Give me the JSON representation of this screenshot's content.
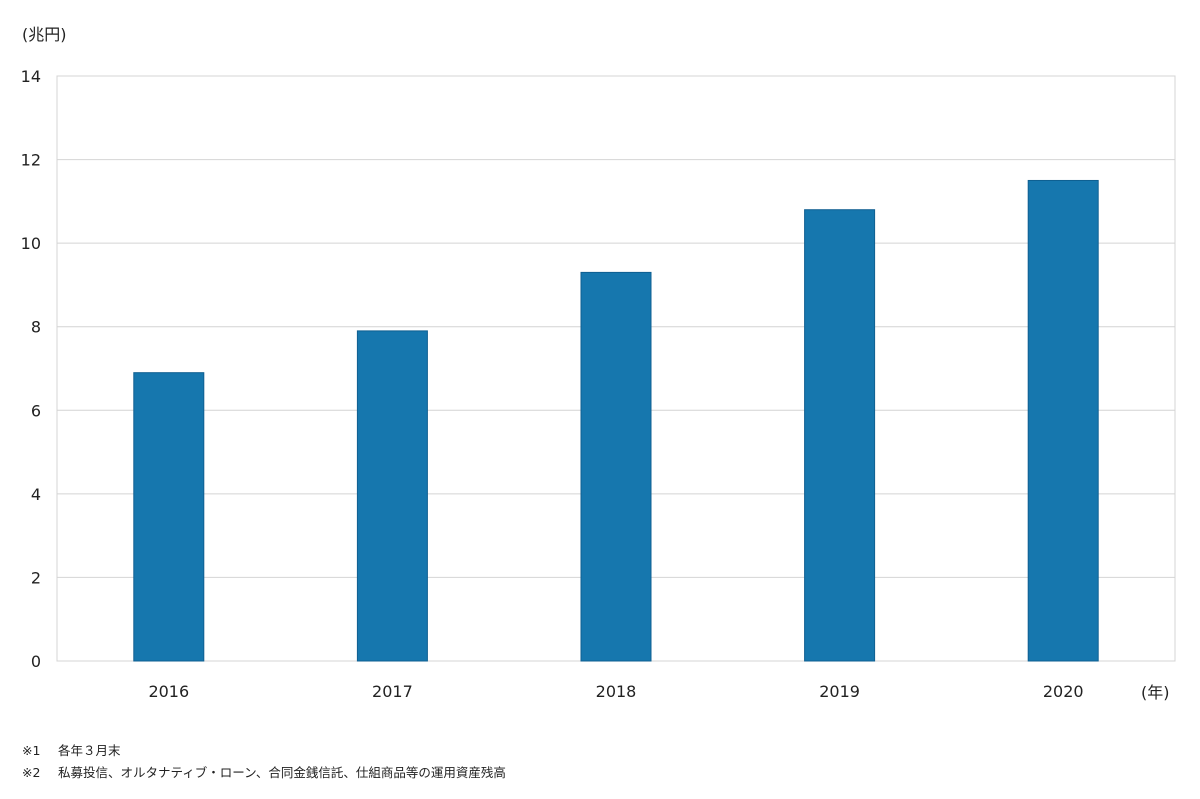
{
  "chart_data": {
    "type": "bar",
    "ylabel": "(兆円)",
    "xlabel": "(年)",
    "categories": [
      "2016",
      "2017",
      "2018",
      "2019",
      "2020"
    ],
    "values": [
      6.9,
      7.9,
      9.3,
      10.8,
      11.5
    ],
    "ylim": [
      0,
      14
    ],
    "yticks": [
      0,
      2,
      4,
      6,
      8,
      10,
      12,
      14
    ],
    "grid": true,
    "bar_color": "#1677ae",
    "bar_border_color": "#0f5f91",
    "grid_color": "#d4d4d4"
  },
  "notes": [
    {
      "mark": "※1",
      "text": "各年３月末"
    },
    {
      "mark": "※2",
      "text": "私募投信、オルタナティブ・ローン、合同金銭信託、仕組商品等の運用資産残高"
    }
  ]
}
